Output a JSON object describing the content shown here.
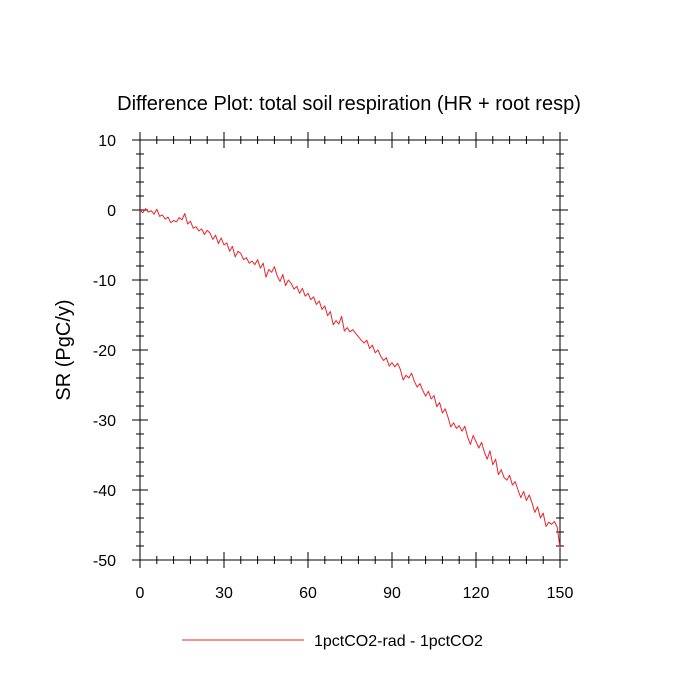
{
  "chart_data": {
    "type": "line",
    "title": "Difference Plot: total soil respiration (HR + root resp)",
    "xlabel": "",
    "ylabel": "SR  (PgC/y)",
    "xlim": [
      0,
      150
    ],
    "ylim": [
      -50,
      10
    ],
    "xticks": [
      0,
      30,
      60,
      90,
      120,
      150
    ],
    "yticks": [
      10,
      0,
      -10,
      -20,
      -30,
      -40,
      -50
    ],
    "xtick_labels": [
      "0",
      "30",
      "60",
      "90",
      "120",
      "150"
    ],
    "ytick_labels": [
      "10",
      "0",
      "-10",
      "-20",
      "-30",
      "-40",
      "-50"
    ],
    "grid": false,
    "legend_position": "bottom",
    "series": [
      {
        "name": "1pctCO2-rad - 1pctCO2",
        "color": "#e8242c",
        "x": [
          0,
          1,
          2,
          3,
          4,
          5,
          6,
          7,
          8,
          9,
          10,
          11,
          12,
          13,
          14,
          15,
          16,
          17,
          18,
          19,
          20,
          21,
          22,
          23,
          24,
          25,
          26,
          27,
          28,
          29,
          30,
          31,
          32,
          33,
          34,
          35,
          36,
          37,
          38,
          39,
          40,
          41,
          42,
          43,
          44,
          45,
          46,
          47,
          48,
          49,
          50,
          51,
          52,
          53,
          54,
          55,
          56,
          57,
          58,
          59,
          60,
          61,
          62,
          63,
          64,
          65,
          66,
          67,
          68,
          69,
          70,
          71,
          72,
          73,
          74,
          75,
          76,
          77,
          78,
          79,
          80,
          81,
          82,
          83,
          84,
          85,
          86,
          87,
          88,
          89,
          90,
          91,
          92,
          93,
          94,
          95,
          96,
          97,
          98,
          99,
          100,
          101,
          102,
          103,
          104,
          105,
          106,
          107,
          108,
          109,
          110,
          111,
          112,
          113,
          114,
          115,
          116,
          117,
          118,
          119,
          120,
          121,
          122,
          123,
          124,
          125,
          126,
          127,
          128,
          129,
          130,
          131,
          132,
          133,
          134,
          135,
          136,
          137,
          138,
          139,
          140,
          141,
          142,
          143,
          144,
          145,
          146,
          147,
          148,
          149,
          150
        ],
        "y": [
          0.0,
          -0.4,
          0.2,
          -0.3,
          -0.1,
          -0.6,
          0.1,
          -0.9,
          -0.7,
          -1.3,
          -1.0,
          -1.8,
          -1.5,
          -1.7,
          -1.1,
          -1.4,
          -0.5,
          -2.0,
          -1.6,
          -2.6,
          -2.4,
          -3.0,
          -2.7,
          -3.5,
          -2.9,
          -3.3,
          -4.2,
          -3.6,
          -4.8,
          -4.0,
          -5.0,
          -4.7,
          -5.9,
          -5.2,
          -6.7,
          -5.9,
          -6.2,
          -7.1,
          -6.8,
          -7.6,
          -7.3,
          -7.8,
          -7.1,
          -8.3,
          -7.6,
          -9.6,
          -8.5,
          -8.9,
          -8.1,
          -9.4,
          -10.2,
          -9.2,
          -10.8,
          -10.0,
          -10.5,
          -11.3,
          -10.9,
          -11.9,
          -11.2,
          -12.3,
          -11.9,
          -12.8,
          -12.4,
          -13.5,
          -13.0,
          -14.2,
          -13.7,
          -15.1,
          -14.5,
          -16.4,
          -15.8,
          -16.3,
          -15.2,
          -17.3,
          -16.8,
          -17.4,
          -17.1,
          -17.6,
          -18.1,
          -18.6,
          -19.0,
          -18.6,
          -19.8,
          -19.3,
          -20.4,
          -20.0,
          -20.9,
          -21.5,
          -21.1,
          -22.3,
          -21.8,
          -22.4,
          -21.9,
          -22.8,
          -24.3,
          -23.6,
          -24.0,
          -23.3,
          -24.5,
          -25.3,
          -24.8,
          -25.8,
          -26.6,
          -25.9,
          -27.0,
          -26.5,
          -28.1,
          -27.5,
          -29.0,
          -28.4,
          -29.6,
          -31.0,
          -30.4,
          -31.2,
          -30.8,
          -31.6,
          -30.9,
          -32.4,
          -33.5,
          -32.2,
          -33.1,
          -34.0,
          -33.2,
          -34.6,
          -35.6,
          -34.4,
          -36.4,
          -35.6,
          -37.8,
          -37.1,
          -38.2,
          -38.6,
          -37.9,
          -39.3,
          -38.8,
          -40.0,
          -41.1,
          -40.2,
          -41.5,
          -40.7,
          -41.8,
          -43.2,
          -42.4,
          -44.0,
          -43.3,
          -45.2,
          -44.6,
          -44.9,
          -44.5,
          -45.3,
          -48.3
        ]
      }
    ]
  }
}
